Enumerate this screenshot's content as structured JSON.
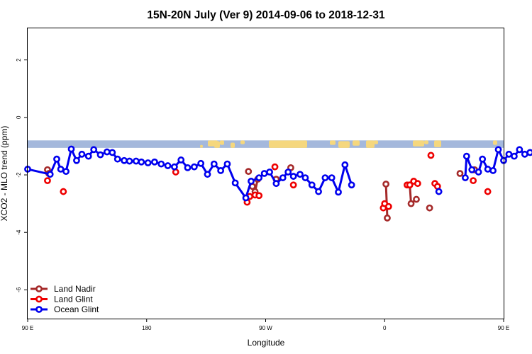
{
  "chart_data": {
    "type": "line",
    "title": "15N-20N July (Ver 9)   2014-09-06 to 2018-12-31",
    "xlabel": "Longitude",
    "ylabel": "XCO2 - MLO trend (ppm)",
    "xlim": [
      90,
      450
    ],
    "ylim": [
      -7,
      3.1
    ],
    "x_ticks": [
      {
        "value": 90,
        "label": "90 E"
      },
      {
        "value": 180,
        "label": "180"
      },
      {
        "value": 270,
        "label": "90 W"
      },
      {
        "value": 360,
        "label": "0"
      },
      {
        "value": 450,
        "label": "90 E"
      },
      {
        "value": 540,
        "label": "180"
      }
    ],
    "y_ticks": [
      {
        "value": 2,
        "label": "2"
      },
      {
        "value": 0,
        "label": "0"
      },
      {
        "value": -2,
        "label": "-2"
      },
      {
        "value": -4,
        "label": "-4"
      },
      {
        "value": -6,
        "label": "-6"
      }
    ],
    "map_band": {
      "y_top": -0.8,
      "y_bottom": -1.06,
      "ocean_color": "#a4b8dc",
      "land_color": "#f5d77e"
    },
    "legend_position": "bottom-left",
    "series": [
      {
        "name": "Land Nadir",
        "color": "#a52a2a",
        "segments": [
          [
            [
              105,
              -1.82
            ],
            [
              106,
              -1.95
            ]
          ],
          [
            [
              257,
              -1.88
            ]
          ],
          [
            [
              260,
              -2.4
            ],
            [
              262,
              -2.58
            ],
            [
              264,
              -2.15
            ]
          ],
          [
            [
              278,
              -2.15
            ]
          ],
          [
            [
              289,
              -1.75
            ]
          ],
          [
            [
              361,
              -2.32
            ],
            [
              362,
              -3.5
            ]
          ],
          [
            [
              379,
              -2.35
            ],
            [
              380,
              -3.0
            ],
            [
              384,
              -2.85
            ]
          ],
          [
            [
              394,
              -3.15
            ]
          ],
          [
            [
              417,
              -1.95
            ]
          ],
          [
            [
              428,
              -1.82
            ]
          ]
        ]
      },
      {
        "name": "Land Glint",
        "color": "#ee0000",
        "segments": [
          [
            [
              105,
              -2.2
            ]
          ],
          [
            [
              117,
              -2.58
            ]
          ],
          [
            [
              202,
              -1.9
            ]
          ],
          [
            [
              256,
              -2.95
            ],
            [
              258,
              -2.75
            ],
            [
              262,
              -2.7
            ],
            [
              265,
              -2.72
            ]
          ],
          [
            [
              277,
              -1.72
            ]
          ],
          [
            [
              291,
              -2.35
            ]
          ],
          [
            [
              359,
              -3.15
            ],
            [
              360,
              -3.0
            ],
            [
              363,
              -3.1
            ]
          ],
          [
            [
              377,
              -2.35
            ],
            [
              379,
              -2.35
            ]
          ],
          [
            [
              382,
              -2.22
            ],
            [
              385,
              -2.3
            ]
          ],
          [
            [
              395,
              -1.32
            ]
          ],
          [
            [
              398,
              -2.3
            ],
            [
              400,
              -2.4
            ]
          ],
          [
            [
              427,
              -2.2
            ]
          ],
          [
            [
              438,
              -2.58
            ]
          ]
        ]
      },
      {
        "name": "Ocean Glint",
        "color": "#0000ee",
        "segments": [
          [
            [
              90,
              -1.8
            ],
            [
              107,
              -1.98
            ],
            [
              112,
              -1.45
            ],
            [
              115,
              -1.8
            ],
            [
              119,
              -1.88
            ],
            [
              123,
              -1.1
            ],
            [
              127,
              -1.5
            ],
            [
              131,
              -1.28
            ],
            [
              136,
              -1.35
            ],
            [
              140,
              -1.12
            ],
            [
              145,
              -1.3
            ],
            [
              150,
              -1.2
            ],
            [
              154,
              -1.22
            ],
            [
              158,
              -1.45
            ],
            [
              163,
              -1.5
            ],
            [
              167,
              -1.52
            ],
            [
              172,
              -1.52
            ],
            [
              176,
              -1.55
            ],
            [
              181,
              -1.58
            ],
            [
              186,
              -1.55
            ],
            [
              191,
              -1.62
            ],
            [
              196,
              -1.68
            ],
            [
              201,
              -1.72
            ],
            [
              206,
              -1.48
            ],
            [
              211,
              -1.75
            ],
            [
              216,
              -1.72
            ],
            [
              221,
              -1.6
            ],
            [
              226,
              -1.98
            ],
            [
              231,
              -1.62
            ],
            [
              236,
              -1.85
            ],
            [
              241,
              -1.62
            ],
            [
              247,
              -2.28
            ],
            [
              255,
              -2.8
            ],
            [
              259,
              -2.22
            ],
            [
              265,
              -2.1
            ],
            [
              269,
              -1.95
            ],
            [
              273,
              -1.9
            ],
            [
              278,
              -2.3
            ],
            [
              283,
              -2.1
            ],
            [
              287,
              -1.9
            ],
            [
              291,
              -2.05
            ],
            [
              296,
              -1.98
            ],
            [
              300,
              -2.1
            ],
            [
              305,
              -2.35
            ],
            [
              310,
              -2.58
            ],
            [
              315,
              -2.1
            ],
            [
              320,
              -2.1
            ],
            [
              325,
              -2.6
            ],
            [
              330,
              -1.65
            ],
            [
              335,
              -2.35
            ]
          ],
          [
            [
              401,
              -2.58
            ]
          ],
          [
            [
              421,
              -2.1
            ],
            [
              422,
              -1.35
            ],
            [
              426,
              -1.82
            ]
          ],
          [
            [
              431,
              -1.9
            ],
            [
              434,
              -1.45
            ],
            [
              438,
              -1.8
            ],
            [
              442,
              -1.85
            ],
            [
              446,
              -1.12
            ],
            [
              450,
              -1.5
            ],
            [
              454,
              -1.28
            ],
            [
              458,
              -1.35
            ],
            [
              462,
              -1.12
            ],
            [
              466,
              -1.28
            ],
            [
              470,
              -1.22
            ],
            [
              474,
              -1.25
            ],
            [
              478,
              -1.5
            ],
            [
              482,
              -1.52
            ],
            [
              486,
              -1.5
            ]
          ]
        ]
      }
    ]
  }
}
